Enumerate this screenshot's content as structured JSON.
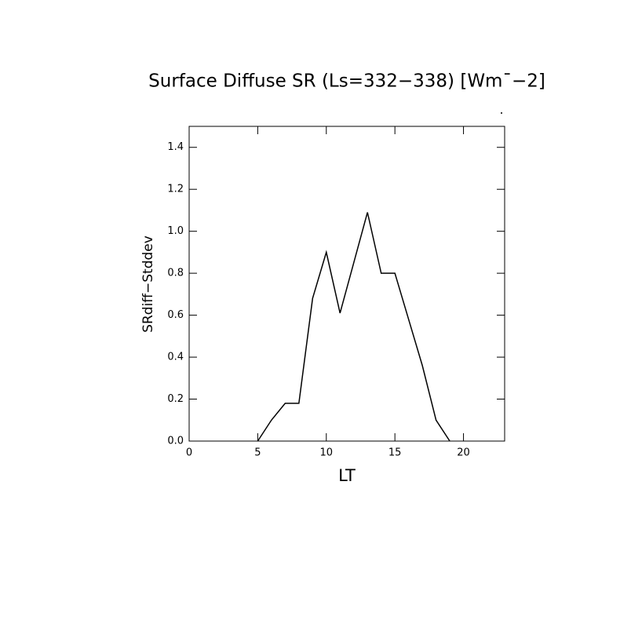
{
  "chart_data": {
    "type": "line",
    "title": "Surface Diffuse SR (Ls=332−338) [Wm¯−2]",
    "x_label": "LT",
    "y_label": "SRdiff−Stddev",
    "x": [
      5,
      6,
      7,
      8,
      9,
      10,
      11,
      12,
      13,
      14,
      15,
      16,
      17,
      18,
      19
    ],
    "series": [
      {
        "color": "#000000",
        "values": [
          0,
          0.1,
          0.18,
          0.18,
          0.68,
          0.9,
          0.61,
          0.85,
          1.09,
          0.8,
          0.8,
          0.58,
          0.36,
          0.1,
          0
        ]
      }
    ],
    "xlim": [
      0,
      23
    ],
    "xticks": [
      0,
      5,
      10,
      15,
      20
    ],
    "ylim": [
      0,
      1.5
    ],
    "yticks": [
      {
        "value": 0,
        "label": "0.0"
      },
      0.2,
      0.4,
      0.6,
      0.8,
      {
        "value": 1,
        "label": "1.0"
      },
      1.2,
      1.4
    ],
    "grid": false
  }
}
